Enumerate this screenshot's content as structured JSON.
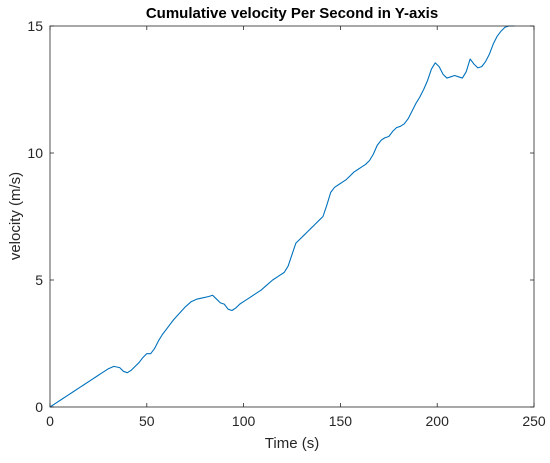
{
  "chart_data": {
    "type": "line",
    "title": "Cumulative velocity Per Second in Y-axis",
    "xlabel": "Time (s)",
    "ylabel": "velocity (m/s)",
    "xlim": [
      0,
      250
    ],
    "ylim": [
      0,
      15
    ],
    "xticks": [
      "0",
      "50",
      "100",
      "150",
      "200",
      "250"
    ],
    "yticks": [
      "0",
      "5",
      "10",
      "15"
    ],
    "grid": false,
    "series": [
      {
        "color": "#0072bd",
        "x": [
          0,
          3,
          6,
          9,
          12,
          15,
          18,
          21,
          24,
          27,
          30,
          33,
          36,
          38,
          40,
          42,
          44,
          46,
          48,
          50,
          52,
          54,
          56,
          58,
          60,
          62,
          64,
          67,
          70,
          73,
          76,
          79,
          82,
          84,
          86,
          88,
          90,
          92,
          94,
          96,
          98,
          100,
          103,
          106,
          109,
          112,
          115,
          118,
          121,
          123,
          125,
          127,
          129,
          131,
          133,
          135,
          137,
          139,
          141,
          143,
          145,
          147,
          149,
          151,
          153,
          155,
          157,
          159,
          161,
          163,
          165,
          167,
          169,
          171,
          173,
          175,
          177,
          179,
          181,
          183,
          185,
          187,
          189,
          191,
          193,
          195,
          197,
          199,
          201,
          203,
          205,
          207,
          209,
          211,
          213,
          215,
          217,
          219,
          221,
          223,
          225,
          227,
          229,
          231,
          233,
          235,
          237,
          240
        ],
        "values": [
          0,
          0.15,
          0.3,
          0.45,
          0.6,
          0.75,
          0.9,
          1.05,
          1.2,
          1.35,
          1.5,
          1.6,
          1.55,
          1.4,
          1.35,
          1.45,
          1.6,
          1.75,
          1.95,
          2.1,
          2.1,
          2.3,
          2.6,
          2.85,
          3.05,
          3.25,
          3.45,
          3.7,
          3.95,
          4.15,
          4.25,
          4.3,
          4.35,
          4.4,
          4.25,
          4.1,
          4.05,
          3.85,
          3.8,
          3.9,
          4.05,
          4.15,
          4.3,
          4.45,
          4.6,
          4.8,
          5.0,
          5.15,
          5.3,
          5.55,
          6.0,
          6.45,
          6.6,
          6.75,
          6.9,
          7.05,
          7.2,
          7.35,
          7.5,
          7.95,
          8.45,
          8.65,
          8.75,
          8.85,
          8.95,
          9.1,
          9.25,
          9.35,
          9.45,
          9.55,
          9.7,
          9.95,
          10.3,
          10.5,
          10.6,
          10.65,
          10.85,
          11.0,
          11.05,
          11.15,
          11.35,
          11.65,
          11.95,
          12.2,
          12.5,
          12.85,
          13.3,
          13.55,
          13.4,
          13.1,
          12.95,
          13.0,
          13.05,
          13.0,
          12.95,
          13.2,
          13.7,
          13.5,
          13.35,
          13.4,
          13.6,
          13.9,
          14.3,
          14.6,
          14.8,
          14.95,
          15.05,
          15.2
        ]
      }
    ]
  }
}
